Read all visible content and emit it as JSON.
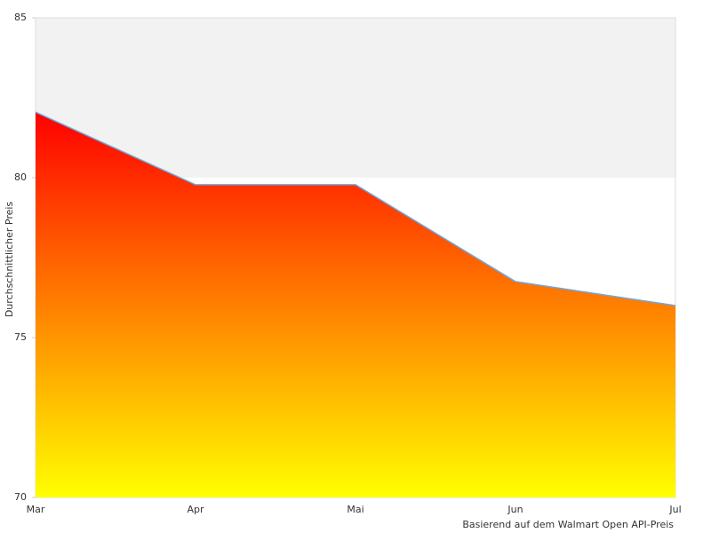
{
  "chart_data": {
    "type": "area",
    "x_label": "Basierend auf dem Walmart Open API-Preis",
    "y_label": "Durchschnittlicher Preis",
    "categories": [
      "Mar",
      "Apr",
      "Mai",
      "Jun",
      "Jul"
    ],
    "values": [
      82.05,
      79.78,
      79.78,
      76.75,
      76.0
    ],
    "line_color": "#6fa8dc",
    "gradient": [
      "#ff0000",
      "#ffff00"
    ],
    "band_color": "#f2f2f2",
    "ylim": [
      70,
      85
    ],
    "yticks": [
      70,
      75,
      80,
      85
    ]
  }
}
